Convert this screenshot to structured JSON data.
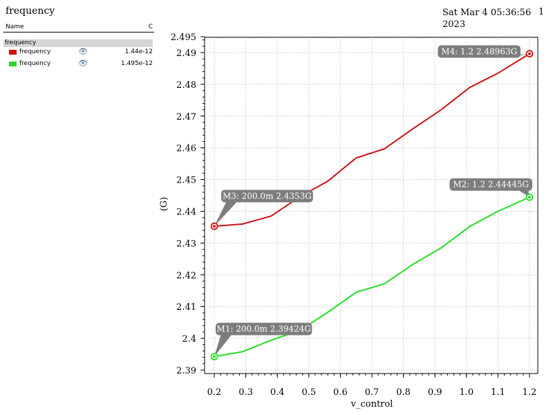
{
  "header": {
    "title": "frequency",
    "date_line1": "Sat Mar 4 05:36:56",
    "date_line2": "2023",
    "page_number": "1"
  },
  "legend": {
    "col_name": "Name",
    "col_c": "C",
    "group": "frequency",
    "items": [
      {
        "label": "frequency",
        "value": "1.44e-12",
        "color": "#cc1111",
        "icon": "eye-icon"
      },
      {
        "label": "frequency",
        "value": "1.495e-12",
        "color": "#22dd22",
        "icon": "eye-icon"
      }
    ]
  },
  "chart_data": {
    "type": "line",
    "xlabel": "v_control",
    "ylabel": "(G)",
    "xlim": [
      0.2,
      1.2
    ],
    "ylim": [
      2.39,
      2.495
    ],
    "x_ticks": [
      "0.2",
      "0.3",
      "0.4",
      "0.5",
      "0.6",
      "0.7",
      "0.8",
      "0.9",
      "1.0",
      "1.1",
      "1.2"
    ],
    "y_ticks": [
      "2.39",
      "2.4",
      "2.41",
      "2.42",
      "2.43",
      "2.44",
      "2.45",
      "2.46",
      "2.47",
      "2.48",
      "2.49",
      "2.495"
    ],
    "grid": true,
    "series": [
      {
        "name": "frequency",
        "color": "#cc1111",
        "x": [
          0.2,
          0.29,
          0.38,
          0.47,
          0.56,
          0.65,
          0.74,
          0.83,
          0.92,
          1.01,
          1.1,
          1.2
        ],
        "y": [
          2.4353,
          2.436,
          2.4385,
          2.4445,
          2.4495,
          2.4568,
          2.4597,
          2.466,
          2.472,
          2.479,
          2.4835,
          2.48963
        ]
      },
      {
        "name": "frequency",
        "color": "#22dd22",
        "x": [
          0.2,
          0.29,
          0.38,
          0.47,
          0.56,
          0.65,
          0.74,
          0.83,
          0.92,
          1.01,
          1.1,
          1.2
        ],
        "y": [
          2.39424,
          2.3958,
          2.3994,
          2.4024,
          2.4082,
          2.4145,
          2.4172,
          2.4233,
          2.4285,
          2.4352,
          2.44,
          2.44445
        ]
      }
    ],
    "markers": [
      {
        "id": "M1",
        "text": "M1: 200.0m 2.39424G",
        "x": 0.2,
        "y": 2.39424,
        "series": 1,
        "dx": 0.0,
        "dy": 0.0087,
        "color": "#22dd22"
      },
      {
        "id": "M2",
        "text": "M2: 1.2 2.44445G",
        "x": 1.2,
        "y": 2.44445,
        "series": 1,
        "dx": -0.22,
        "dy": 0.004,
        "color": "#22dd22"
      },
      {
        "id": "M3",
        "text": "M3: 200.0m 2.4353G",
        "x": 0.2,
        "y": 2.4353,
        "series": 0,
        "dx": 0.0,
        "dy": 0.0095,
        "color": "#cc1111"
      },
      {
        "id": "M4",
        "text": "M4: 1.2 2.48963G",
        "x": 1.2,
        "y": 2.48963,
        "series": 0,
        "dx": -0.26,
        "dy": 0.0007,
        "color": "#cc1111"
      }
    ]
  }
}
